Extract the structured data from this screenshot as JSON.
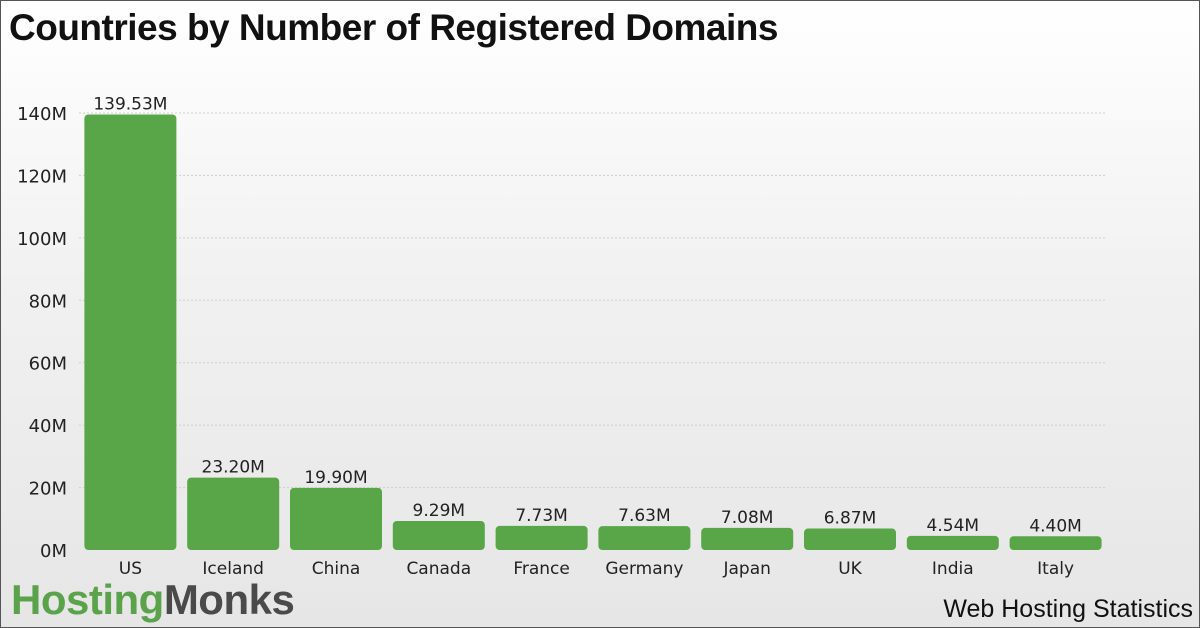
{
  "title": "Countries by Number of Registered Domains",
  "brand": {
    "part1": "Hosting",
    "part2": "Monks"
  },
  "footer": "Web Hosting Statistics",
  "colors": {
    "bar": "#58a647",
    "grid": "#cfcfcf",
    "text": "#222222",
    "brand_green": "#5aa34a"
  },
  "chart_data": {
    "type": "bar",
    "categories": [
      "US",
      "Iceland",
      "China",
      "Canada",
      "France",
      "Germany",
      "Japan",
      "UK",
      "India",
      "Italy"
    ],
    "values": [
      139.53,
      23.2,
      19.9,
      9.29,
      7.73,
      7.63,
      7.08,
      6.87,
      4.54,
      4.4
    ],
    "value_labels": [
      "139.53M",
      "23.20M",
      "19.90M",
      "9.29M",
      "7.73M",
      "7.63M",
      "7.08M",
      "6.87M",
      "4.54M",
      "4.40M"
    ],
    "yticks": [
      0,
      20,
      40,
      60,
      80,
      100,
      120,
      140
    ],
    "ytick_labels": [
      "0M",
      "20M",
      "40M",
      "60M",
      "80M",
      "100M",
      "120M",
      "140M"
    ],
    "ylim": [
      0,
      140
    ],
    "grid": true
  }
}
